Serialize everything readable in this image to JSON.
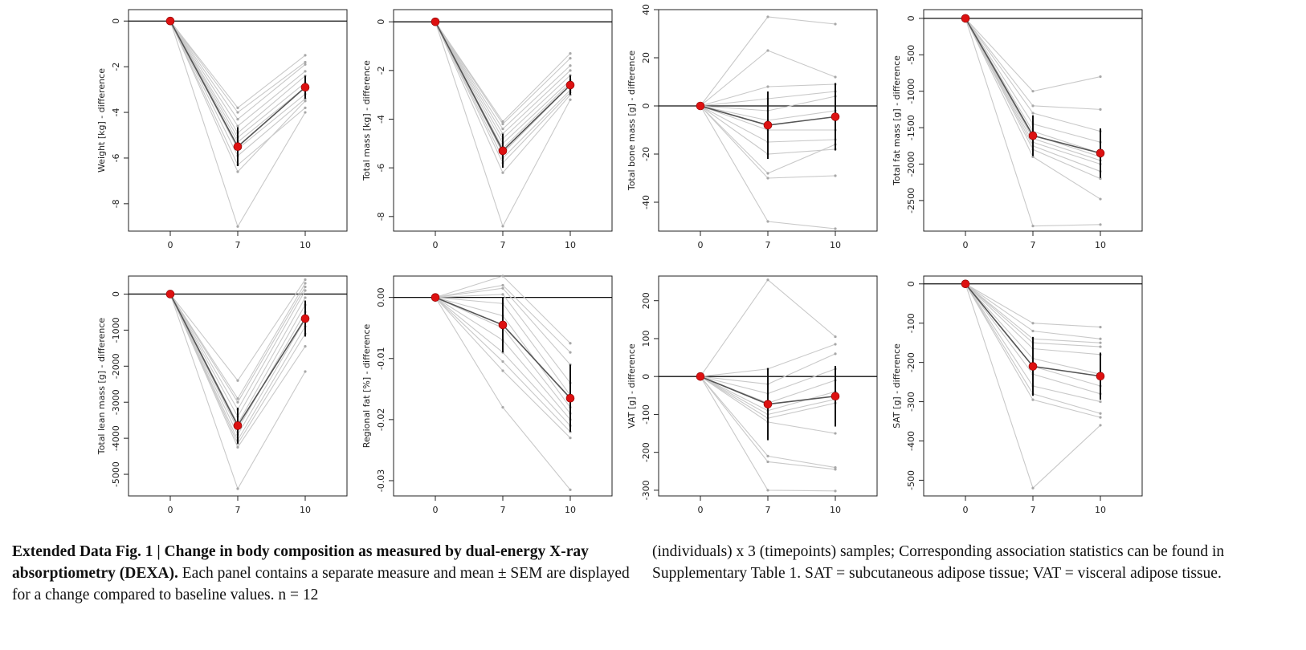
{
  "figure": {
    "panels": [
      {
        "id": "weight",
        "chart_data": {
          "type": "line",
          "ylabel": "Weight [kg] - difference",
          "x": [
            0,
            7,
            10
          ],
          "xticks": [
            "0",
            "7",
            "10"
          ],
          "yticks": [
            "0",
            "-2",
            "-4",
            "-6",
            "-8"
          ],
          "ylim": [
            -9.2,
            0.5
          ],
          "reference_line": 0,
          "mean": [
            0,
            -5.5,
            -2.9
          ],
          "sem": [
            0,
            0.85,
            0.5
          ],
          "individuals": [
            [
              0,
              -9.0,
              -4.0
            ],
            [
              0,
              -6.6,
              -3.5
            ],
            [
              0,
              -6.3,
              -3.8
            ],
            [
              0,
              -5.9,
              -3.4
            ],
            [
              0,
              -5.6,
              -3.2
            ],
            [
              0,
              -5.3,
              -2.9
            ],
            [
              0,
              -5.1,
              -2.7
            ],
            [
              0,
              -4.9,
              -2.4
            ],
            [
              0,
              -4.6,
              -2.2
            ],
            [
              0,
              -4.3,
              -1.9
            ],
            [
              0,
              -4.0,
              -1.8
            ],
            [
              0,
              -3.8,
              -1.5
            ]
          ]
        }
      },
      {
        "id": "total-mass",
        "chart_data": {
          "type": "line",
          "ylabel": "Total mass [kg] - difference",
          "x": [
            0,
            7,
            10
          ],
          "xticks": [
            "0",
            "7",
            "10"
          ],
          "yticks": [
            "0",
            "-2",
            "-4",
            "-6",
            "-8"
          ],
          "ylim": [
            -8.6,
            0.5
          ],
          "reference_line": 0,
          "mean": [
            0,
            -5.3,
            -2.6
          ],
          "sem": [
            0,
            0.7,
            0.4
          ],
          "individuals": [
            [
              0,
              -8.4,
              -3.2
            ],
            [
              0,
              -6.2,
              -3.0
            ],
            [
              0,
              -5.8,
              -2.9
            ],
            [
              0,
              -5.6,
              -2.8
            ],
            [
              0,
              -5.4,
              -2.6
            ],
            [
              0,
              -5.2,
              -2.5
            ],
            [
              0,
              -5.0,
              -2.4
            ],
            [
              0,
              -4.8,
              -2.2
            ],
            [
              0,
              -4.6,
              -2.0
            ],
            [
              0,
              -4.4,
              -1.8
            ],
            [
              0,
              -4.2,
              -1.5
            ],
            [
              0,
              -4.1,
              -1.3
            ]
          ]
        }
      },
      {
        "id": "bone-mass",
        "chart_data": {
          "type": "line",
          "ylabel": "Total bone mass [g] - difference",
          "x": [
            0,
            7,
            10
          ],
          "xticks": [
            "0",
            "7",
            "10"
          ],
          "yticks": [
            "40",
            "20",
            "0",
            "-20",
            "-40"
          ],
          "ylim": [
            -52,
            40
          ],
          "reference_line": 0,
          "mean": [
            0,
            -8,
            -4.5
          ],
          "sem": [
            0,
            14,
            14
          ],
          "individuals": [
            [
              0,
              37,
              34
            ],
            [
              0,
              23,
              12
            ],
            [
              0,
              8,
              9
            ],
            [
              0,
              3,
              6
            ],
            [
              0,
              -2,
              4
            ],
            [
              0,
              -6,
              -2
            ],
            [
              0,
              -10,
              -10
            ],
            [
              0,
              -15,
              -14
            ],
            [
              0,
              -20,
              -18
            ],
            [
              0,
              -28,
              -16
            ],
            [
              0,
              -30,
              -29
            ],
            [
              0,
              -48,
              -51
            ]
          ]
        }
      },
      {
        "id": "fat-mass",
        "chart_data": {
          "type": "line",
          "ylabel": "Total fat mass [g] - difference",
          "x": [
            0,
            7,
            10
          ],
          "xticks": [
            "0",
            "7",
            "10"
          ],
          "yticks": [
            "0",
            "-500",
            "-1000",
            "-1500",
            "-2000",
            "-2500"
          ],
          "ylim": [
            -2920,
            120
          ],
          "reference_line": 0,
          "mean": [
            0,
            -1610,
            -1850
          ],
          "sem": [
            0,
            280,
            340
          ],
          "individuals": [
            [
              0,
              -2850,
              -2830
            ],
            [
              0,
              -1900,
              -2480
            ],
            [
              0,
              -1800,
              -2200
            ],
            [
              0,
              -1750,
              -2100
            ],
            [
              0,
              -1700,
              -2000
            ],
            [
              0,
              -1650,
              -1950
            ],
            [
              0,
              -1600,
              -1900
            ],
            [
              0,
              -1550,
              -1850
            ],
            [
              0,
              -1450,
              -1700
            ],
            [
              0,
              -1300,
              -1550
            ],
            [
              0,
              -1200,
              -1250
            ],
            [
              0,
              -1000,
              -800
            ]
          ]
        }
      },
      {
        "id": "lean-mass",
        "chart_data": {
          "type": "line",
          "ylabel": "Total lean mass [g] - difference",
          "x": [
            0,
            7,
            10
          ],
          "xticks": [
            "0",
            "7",
            "10"
          ],
          "yticks": [
            "0",
            "-1000",
            "-2000",
            "-3000",
            "-4000",
            "-5000"
          ],
          "ylim": [
            -5600,
            500
          ],
          "reference_line": 0,
          "mean": [
            0,
            -3650,
            -680
          ],
          "sem": [
            0,
            500,
            500
          ],
          "individuals": [
            [
              0,
              -5400,
              -2150
            ],
            [
              0,
              -4250,
              -1450
            ],
            [
              0,
              -4150,
              -1100
            ],
            [
              0,
              -4050,
              -900
            ],
            [
              0,
              -3900,
              -700
            ],
            [
              0,
              -3750,
              -500
            ],
            [
              0,
              -3600,
              -300
            ],
            [
              0,
              -3400,
              -100
            ],
            [
              0,
              -3200,
              100
            ],
            [
              0,
              -3000,
              200
            ],
            [
              0,
              -2900,
              300
            ],
            [
              0,
              -2400,
              400
            ]
          ]
        }
      },
      {
        "id": "regional-fat",
        "chart_data": {
          "type": "line",
          "ylabel": "Regional fat [%] - difference",
          "x": [
            0,
            7,
            10
          ],
          "xticks": [
            "0",
            "7",
            "10"
          ],
          "yticks": [
            "0.00",
            "-0.01",
            "-0.02",
            "-0.03"
          ],
          "ylim": [
            -0.0325,
            0.0035
          ],
          "reference_line": 0,
          "mean": [
            0,
            -0.0045,
            -0.0165
          ],
          "sem": [
            0,
            0.0045,
            0.0055
          ],
          "individuals": [
            [
              0,
              -0.018,
              -0.0315
            ],
            [
              0,
              -0.012,
              -0.023
            ],
            [
              0,
              -0.0105,
              -0.022
            ],
            [
              0,
              -0.009,
              -0.021
            ],
            [
              0,
              -0.007,
              -0.02
            ],
            [
              0,
              -0.005,
              -0.019
            ],
            [
              0,
              -0.003,
              -0.018
            ],
            [
              0,
              -0.001,
              -0.016
            ],
            [
              0,
              0.0005,
              -0.014
            ],
            [
              0,
              0.0015,
              -0.011
            ],
            [
              0,
              0.002,
              -0.009
            ],
            [
              0,
              0.0035,
              -0.0075
            ]
          ]
        }
      },
      {
        "id": "vat",
        "chart_data": {
          "type": "line",
          "ylabel": "VAT [g] - difference",
          "x": [
            0,
            7,
            10
          ],
          "xticks": [
            "0",
            "7",
            "10"
          ],
          "yticks": [
            "200",
            "100",
            "0",
            "-100",
            "-200",
            "-300"
          ],
          "ylim": [
            -315,
            265
          ],
          "reference_line": 0,
          "mean": [
            0,
            -73,
            -52
          ],
          "sem": [
            0,
            95,
            80
          ],
          "individuals": [
            [
              0,
              255,
              105
            ],
            [
              0,
              20,
              85
            ],
            [
              0,
              -20,
              60
            ],
            [
              0,
              -45,
              20
            ],
            [
              0,
              -70,
              -10
            ],
            [
              0,
              -90,
              -40
            ],
            [
              0,
              -100,
              -60
            ],
            [
              0,
              -110,
              -70
            ],
            [
              0,
              -120,
              -150
            ],
            [
              0,
              -210,
              -240
            ],
            [
              0,
              -225,
              -245
            ],
            [
              0,
              -300,
              -302
            ]
          ]
        }
      },
      {
        "id": "sat",
        "chart_data": {
          "type": "line",
          "ylabel": "SAT [g] - difference",
          "x": [
            0,
            7,
            10
          ],
          "xticks": [
            "0",
            "7",
            "10"
          ],
          "yticks": [
            "0",
            "-100",
            "-200",
            "-300",
            "-400",
            "-500"
          ],
          "ylim": [
            -540,
            20
          ],
          "reference_line": 0,
          "mean": [
            0,
            -210,
            -235
          ],
          "sem": [
            0,
            75,
            60
          ],
          "individuals": [
            [
              0,
              -520,
              -360
            ],
            [
              0,
              -295,
              -340
            ],
            [
              0,
              -280,
              -330
            ],
            [
              0,
              -260,
              -300
            ],
            [
              0,
              -230,
              -280
            ],
            [
              0,
              -210,
              -260
            ],
            [
              0,
              -190,
              -230
            ],
            [
              0,
              -165,
              -180
            ],
            [
              0,
              -150,
              -160
            ],
            [
              0,
              -140,
              -150
            ],
            [
              0,
              -120,
              -140
            ],
            [
              0,
              -100,
              -110
            ]
          ]
        }
      }
    ]
  },
  "caption": {
    "left_lead": "Extended Data Fig. 1 | Change in body composition as measured by dual-energy X-ray absorptiometry (DEXA).",
    "left_body": " Each panel contains a separate measure and mean ± SEM are displayed for a change compared to baseline values. n = 12",
    "right_body": "(individuals) x 3 (timepoints) samples; Corresponding association statistics can be found in Supplementary Table 1. SAT = subcutaneous adipose tissue; VAT = visceral adipose tissue."
  },
  "colors": {
    "individual": "#c9c9c9",
    "individual_point": "#a8a8a8",
    "mean_line": "#555555",
    "mean_point": "#dd1111",
    "error_bar": "#111111",
    "axis": "#222222"
  }
}
